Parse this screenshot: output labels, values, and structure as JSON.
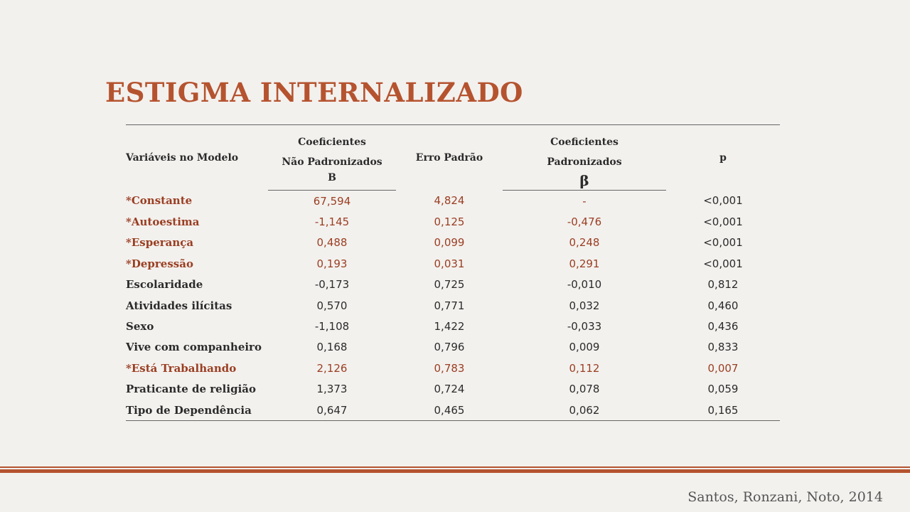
{
  "title": "ESTIGMA INTERNALIZADO",
  "table": {
    "headers": {
      "variable": "Variáveis no Modelo",
      "unstd_line1": "Coeficientes",
      "unstd_line2": "Não Padronizados",
      "unstd_sub": "B",
      "std_error": "Erro Padrão",
      "std_line1": "Coeficientes",
      "std_line2": "Padronizados",
      "std_sub": "β",
      "p": "p"
    },
    "rows": [
      {
        "variable": "*Constante",
        "b": "67,594",
        "se": "4,824",
        "beta": "-",
        "p": "<0,001"
      },
      {
        "variable": "*Autoestima",
        "b": "-1,145",
        "se": "0,125",
        "beta": "-0,476",
        "p": "<0,001"
      },
      {
        "variable": "*Esperança",
        "b": "0,488",
        "se": "0,099",
        "beta": "0,248",
        "p": "<0,001"
      },
      {
        "variable": "*Depressão",
        "b": "0,193",
        "se": "0,031",
        "beta": "0,291",
        "p": "<0,001"
      },
      {
        "variable": "Escolaridade",
        "b": "-0,173",
        "se": "0,725",
        "beta": "-0,010",
        "p": "0,812"
      },
      {
        "variable": "Atividades ilícitas",
        "b": "0,570",
        "se": "0,771",
        "beta": "0,032",
        "p": "0,460"
      },
      {
        "variable": "Sexo",
        "b": "-1,108",
        "se": "1,422",
        "beta": "-0,033",
        "p": "0,436"
      },
      {
        "variable": "Vive com companheiro",
        "b": "0,168",
        "se": "0,796",
        "beta": "0,009",
        "p": "0,833"
      },
      {
        "variable": "*Está Trabalhando",
        "b": "2,126",
        "se": "0,783",
        "beta": "0,112",
        "p": "0,007"
      },
      {
        "variable": "Praticante de religião",
        "b": "1,373",
        "se": "0,724",
        "beta": "0,078",
        "p": "0,059"
      },
      {
        "variable": "Tipo de Dependência",
        "b": "0,647",
        "se": "0,465",
        "beta": "0,062",
        "p": "0,165"
      }
    ]
  },
  "citation": "Santos, Ronzani, Noto, 2014",
  "colors": {
    "accent": "#b5532f",
    "significant_text": "#9a3e22",
    "body_text": "#2b2b2b",
    "background": "#f3f1ee"
  }
}
